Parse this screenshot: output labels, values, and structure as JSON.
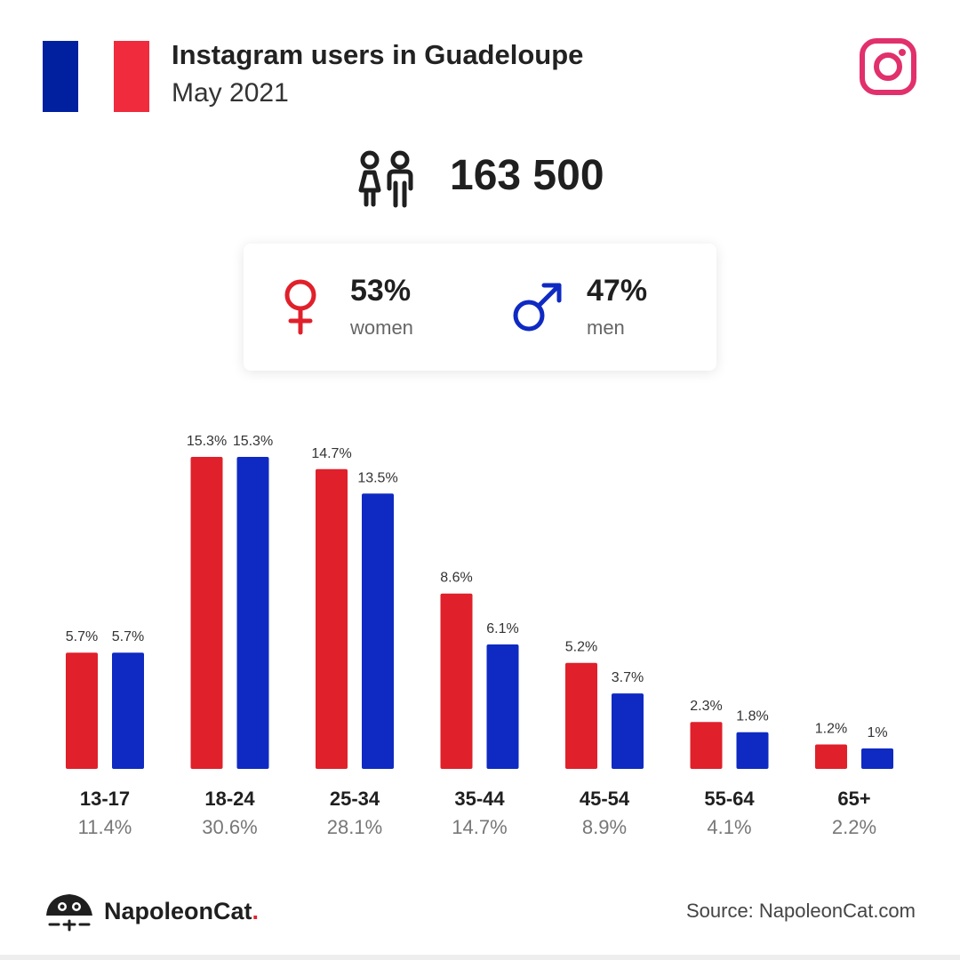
{
  "header": {
    "title": "Instagram users in Guadeloupe",
    "subtitle": "May 2021",
    "flag_colors": [
      "#00209f",
      "#ffffff",
      "#ef2b3d"
    ],
    "logo_icon": "instagram-icon",
    "logo_color": "#e1306c"
  },
  "total": {
    "icon": "people-icon",
    "value": "163 500"
  },
  "gender": {
    "women": {
      "icon": "female-symbol-icon",
      "percent": "53%",
      "label": "women",
      "color": "#e0202a"
    },
    "men": {
      "icon": "male-symbol-icon",
      "percent": "47%",
      "label": "men",
      "color": "#0f2ac2"
    }
  },
  "chart_data": {
    "type": "bar",
    "categories": [
      "13-17",
      "18-24",
      "25-34",
      "35-44",
      "45-54",
      "55-64",
      "65+"
    ],
    "totals": [
      "11.4%",
      "30.6%",
      "28.1%",
      "14.7%",
      "8.9%",
      "4.1%",
      "2.2%"
    ],
    "series": [
      {
        "color": "#e0202a",
        "values": [
          5.7,
          15.3,
          14.7,
          8.6,
          5.2,
          2.3,
          1.2
        ],
        "labels": [
          "5.7%",
          "15.3%",
          "14.7%",
          "8.6%",
          "5.2%",
          "2.3%",
          "1.2%"
        ]
      },
      {
        "color": "#0f2ac2",
        "values": [
          5.7,
          15.3,
          13.5,
          6.1,
          3.7,
          1.8,
          1.0
        ],
        "labels": [
          "5.7%",
          "15.3%",
          "13.5%",
          "6.1%",
          "3.7%",
          "1.8%",
          "1%"
        ]
      }
    ],
    "ylim": [
      0,
      15.3
    ],
    "grid": false
  },
  "footer": {
    "brand": "NapoleonCat",
    "brand_dot": ".",
    "brand_icon": "napoleoncat-logo-icon",
    "source": "Source: NapoleonCat.com"
  }
}
